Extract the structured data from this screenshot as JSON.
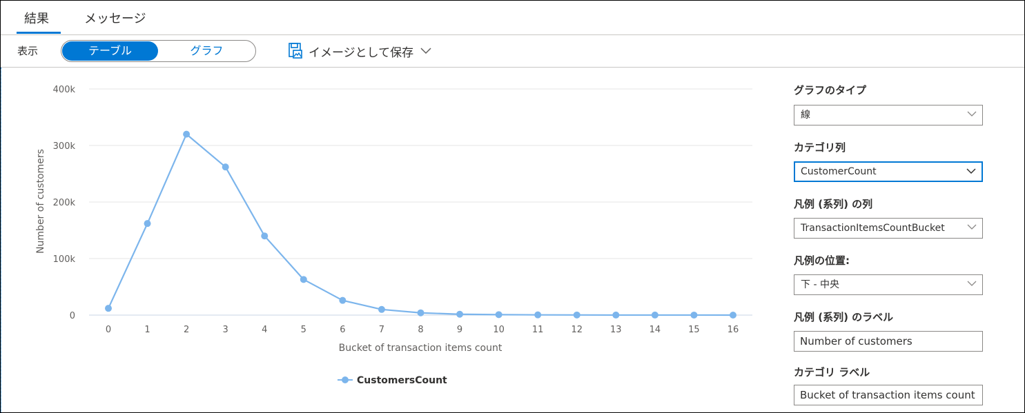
{
  "tabs": [
    {
      "label": "結果",
      "active": true
    },
    {
      "label": "メッセージ",
      "active": false
    }
  ],
  "toolbar": {
    "view_label": "表示",
    "toggle_table": "テーブル",
    "toggle_chart": "グラフ",
    "save_label": "イメージとして保存"
  },
  "colors": {
    "accent": "#0078d4",
    "series": "#7cb5ec"
  },
  "chart_data": {
    "type": "line",
    "x": [
      0,
      1,
      2,
      3,
      4,
      5,
      6,
      7,
      8,
      9,
      10,
      11,
      12,
      13,
      14,
      15,
      16
    ],
    "series": [
      {
        "name": "CustomersCount",
        "values": [
          12000,
          162000,
          320000,
          262000,
          140000,
          63000,
          26000,
          10000,
          4000,
          1500,
          800,
          400,
          200,
          100,
          80,
          50,
          30
        ]
      }
    ],
    "ylim": [
      0,
      400000
    ],
    "yticks": [
      0,
      100000,
      200000,
      300000,
      400000
    ],
    "ytick_labels": [
      "0",
      "100k",
      "200k",
      "300k",
      "400k"
    ],
    "xlabel": "Bucket of transaction items count",
    "ylabel": "Number of customers",
    "legend_position": "bottom-center",
    "grid": true
  },
  "panel": {
    "chart_type_label": "グラフのタイプ",
    "chart_type_value": "線",
    "category_column_label": "カテゴリ列",
    "category_column_value": "CustomerCount",
    "legend_series_column_label": "凡例 (系列) の列",
    "legend_series_column_value": "TransactionItemsCountBucket",
    "legend_position_label": "凡例の位置:",
    "legend_position_value": "下 - 中央",
    "legend_series_label_label": "凡例 (系列) のラベル",
    "legend_series_label_value": "Number of customers",
    "category_label_label": "カテゴリ ラベル",
    "category_label_value": "Bucket of transaction items count"
  }
}
